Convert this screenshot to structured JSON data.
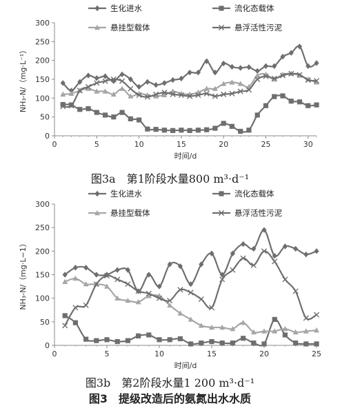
{
  "chart_data": [
    {
      "type": "line",
      "ylabel": "NH₃-N/（mg·L⁻¹）",
      "xlabel": "时间/d",
      "ylim": [
        0,
        300
      ],
      "xlim": [
        0,
        31
      ],
      "yticks": [
        0,
        50,
        100,
        150,
        200,
        250,
        300
      ],
      "xticks": [
        0,
        5,
        10,
        15,
        20,
        25,
        30
      ],
      "legend": "top",
      "caption": "图3a　第1阶段水量800 m³·d⁻¹",
      "series": [
        {
          "name": "生化进水",
          "color": "#6e6e6e",
          "marker": "diamond",
          "x": [
            1,
            2,
            3,
            4,
            5,
            6,
            7,
            8,
            9,
            10,
            11,
            12,
            13,
            14,
            15,
            16,
            17,
            18,
            19,
            20,
            21,
            22,
            23,
            24,
            25,
            26,
            27,
            28,
            29,
            30,
            31
          ],
          "y": [
            140,
            120,
            143,
            160,
            153,
            158,
            145,
            163,
            150,
            130,
            143,
            135,
            140,
            148,
            152,
            168,
            168,
            198,
            168,
            192,
            183,
            180,
            182,
            172,
            185,
            185,
            210,
            220,
            237,
            185,
            193
          ]
        },
        {
          "name": "流化态载体",
          "color": "#6e6e6e",
          "marker": "square",
          "x": [
            1,
            2,
            3,
            4,
            5,
            6,
            7,
            8,
            9,
            10,
            11,
            12,
            13,
            14,
            15,
            16,
            17,
            18,
            19,
            20,
            21,
            22,
            23,
            24,
            25,
            26,
            27,
            28,
            29,
            30,
            31
          ],
          "y": [
            83,
            82,
            70,
            72,
            62,
            55,
            50,
            62,
            45,
            42,
            18,
            17,
            15,
            14,
            15,
            14,
            15,
            16,
            20,
            33,
            25,
            12,
            15,
            55,
            80,
            104,
            106,
            92,
            90,
            80,
            82
          ]
        },
        {
          "name": "悬挂型载体",
          "color": "#a6a6a6",
          "marker": "triangle",
          "x": [
            1,
            2,
            3,
            4,
            5,
            6,
            7,
            8,
            9,
            10,
            11,
            12,
            13,
            14,
            15,
            16,
            17,
            18,
            19,
            20,
            21,
            22,
            23,
            24,
            25,
            26,
            27,
            28,
            29,
            30,
            31
          ],
          "y": [
            110,
            112,
            120,
            125,
            118,
            118,
            110,
            125,
            105,
            112,
            108,
            105,
            108,
            118,
            112,
            110,
            115,
            125,
            125,
            138,
            142,
            138,
            130,
            160,
            163,
            150,
            163,
            165,
            160,
            150,
            142
          ]
        },
        {
          "name": "悬浮活性污泥",
          "color": "#6e6e6e",
          "marker": "x",
          "x": [
            1,
            2,
            3,
            4,
            5,
            6,
            7,
            8,
            9,
            10,
            11,
            12,
            13,
            14,
            15,
            16,
            17,
            18,
            19,
            20,
            21,
            22,
            23,
            24,
            25,
            26,
            27,
            28,
            29,
            30,
            31
          ],
          "y": [
            78,
            80,
            120,
            130,
            140,
            145,
            150,
            145,
            125,
            108,
            103,
            110,
            115,
            110,
            108,
            105,
            108,
            112,
            105,
            110,
            112,
            118,
            122,
            150,
            158,
            152,
            160,
            165,
            162,
            148,
            146
          ]
        }
      ]
    },
    {
      "type": "line",
      "ylabel": "NH₃-N/（mg·L−1）",
      "xlabel": "时间/d",
      "ylim": [
        0,
        300
      ],
      "xlim": [
        0,
        25
      ],
      "yticks": [
        0,
        50,
        100,
        150,
        200,
        250,
        300
      ],
      "xticks": [
        0,
        5,
        10,
        15,
        20,
        25
      ],
      "legend": "top",
      "caption": "图3b　第2阶段水量1 200 m³·d⁻¹",
      "series": [
        {
          "name": "生化进水",
          "color": "#6e6e6e",
          "marker": "diamond",
          "x": [
            1,
            2,
            3,
            4,
            5,
            6,
            7,
            8,
            9,
            10,
            11,
            12,
            13,
            14,
            15,
            16,
            17,
            18,
            19,
            20,
            21,
            22,
            23,
            24,
            25
          ],
          "y": [
            150,
            165,
            165,
            150,
            150,
            160,
            160,
            115,
            150,
            125,
            172,
            168,
            130,
            172,
            195,
            150,
            195,
            215,
            205,
            245,
            190,
            210,
            205,
            193,
            200
          ]
        },
        {
          "name": "流化态载体",
          "color": "#6e6e6e",
          "marker": "square",
          "x": [
            1,
            2,
            3,
            4,
            5,
            6,
            7,
            8,
            9,
            10,
            11,
            12,
            13,
            14,
            15,
            16,
            17,
            18,
            19,
            20,
            21,
            22,
            23,
            24,
            25
          ],
          "y": [
            63,
            48,
            13,
            10,
            12,
            8,
            10,
            20,
            22,
            12,
            12,
            14,
            3,
            5,
            8,
            5,
            5,
            15,
            5,
            3,
            55,
            22,
            5,
            3,
            3
          ]
        },
        {
          "name": "悬挂型载体",
          "color": "#a6a6a6",
          "marker": "triangle",
          "x": [
            1,
            2,
            3,
            4,
            5,
            6,
            7,
            8,
            9,
            10,
            11,
            12,
            13,
            14,
            15,
            16,
            17,
            18,
            19,
            20,
            21,
            22,
            23,
            24,
            25
          ],
          "y": [
            135,
            142,
            130,
            130,
            125,
            100,
            95,
            92,
            105,
            105,
            85,
            68,
            55,
            42,
            38,
            38,
            35,
            48,
            28,
            30,
            30,
            35,
            28,
            30,
            32
          ]
        },
        {
          "name": "悬浮活性污泥",
          "color": "#6e6e6e",
          "marker": "x",
          "x": [
            1,
            2,
            3,
            4,
            5,
            6,
            7,
            8,
            9,
            10,
            11,
            12,
            13,
            14,
            15,
            16,
            17,
            18,
            19,
            20,
            21,
            22,
            23,
            24,
            25
          ],
          "y": [
            42,
            80,
            85,
            130,
            148,
            140,
            130,
            115,
            110,
            100,
            95,
            118,
            112,
            98,
            80,
            140,
            160,
            185,
            170,
            200,
            178,
            140,
            115,
            58,
            65
          ]
        }
      ]
    }
  ]
}
